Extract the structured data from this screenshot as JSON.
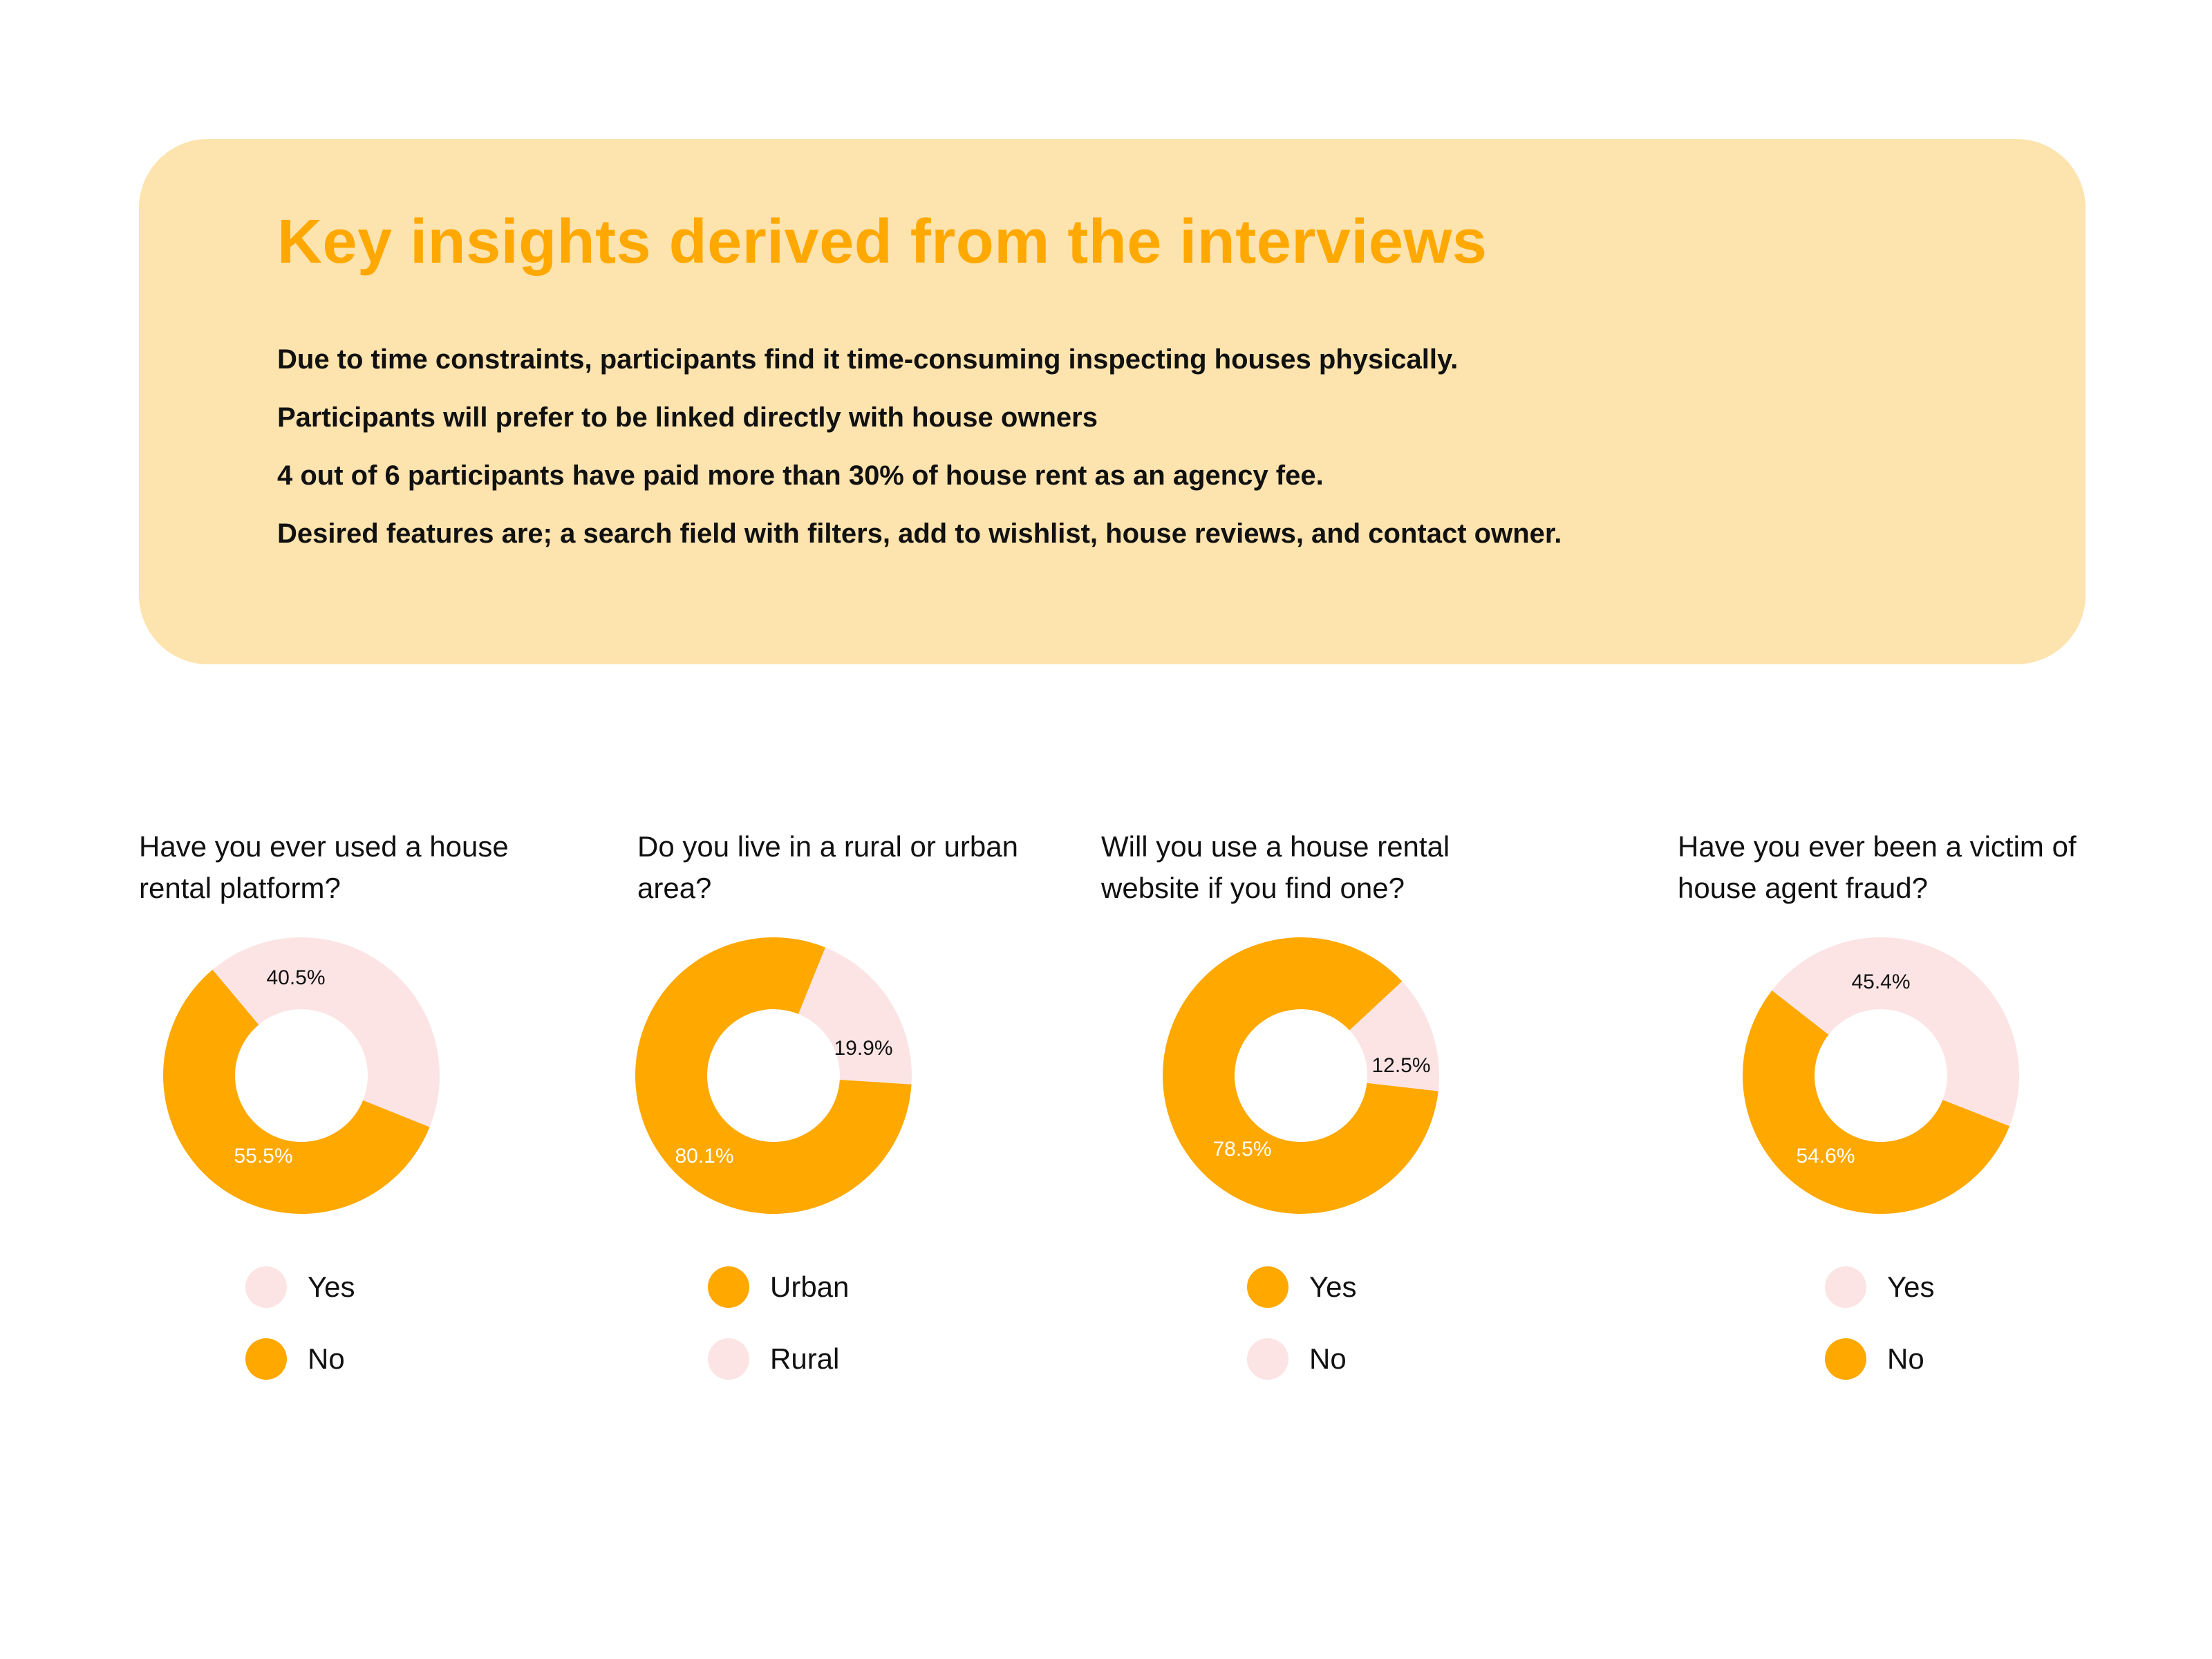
{
  "insights": {
    "title": "Key insights derived from the interviews",
    "lines": [
      "Due to time constraints, participants find it time-consuming inspecting houses physically.",
      "Participants will prefer to be linked directly with house owners",
      "4 out of 6 participants have paid more than 30% of house rent as an agency fee.",
      "Desired features are; a search field with filters, add to wishlist, house reviews, and contact owner."
    ]
  },
  "colors": {
    "orange": "#ffa800",
    "pink": "#fce4e4",
    "panel": "#fde3ad",
    "title": "#ffa800"
  },
  "chart_data": [
    {
      "type": "pie",
      "title": "Have you ever used a house rental platform?",
      "slices": [
        {
          "label": "Yes",
          "value": 40.5,
          "display": "40.5%",
          "color": "#fce4e4"
        },
        {
          "label": "No",
          "value": 55.5,
          "display": "55.5%",
          "color": "#ffa800"
        }
      ],
      "legend": [
        {
          "label": "Yes",
          "color": "#fce4e4"
        },
        {
          "label": "No",
          "color": "#ffa800"
        }
      ]
    },
    {
      "type": "pie",
      "title": "Do you live in a rural or urban area?",
      "slices": [
        {
          "label": "Rural",
          "value": 19.9,
          "display": "19.9%",
          "color": "#fce4e4"
        },
        {
          "label": "Urban",
          "value": 80.1,
          "display": "80.1%",
          "color": "#ffa800"
        }
      ],
      "legend": [
        {
          "label": "Urban",
          "color": "#ffa800"
        },
        {
          "label": "Rural",
          "color": "#fce4e4"
        }
      ]
    },
    {
      "type": "pie",
      "title": "Will you use a house rental website if you find one?",
      "slices": [
        {
          "label": "No",
          "value": 12.5,
          "display": "12.5%",
          "color": "#fce4e4"
        },
        {
          "label": "Yes",
          "value": 78.5,
          "display": "78.5%",
          "color": "#ffa800"
        }
      ],
      "legend": [
        {
          "label": "Yes",
          "color": "#ffa800"
        },
        {
          "label": "No",
          "color": "#fce4e4"
        }
      ]
    },
    {
      "type": "pie",
      "title": "Have you ever been a victim of house agent fraud?",
      "slices": [
        {
          "label": "Yes",
          "value": 45.4,
          "display": "45.4%",
          "color": "#fce4e4"
        },
        {
          "label": "No",
          "value": 54.6,
          "display": "54.6%",
          "color": "#ffa800"
        }
      ],
      "legend": [
        {
          "label": "Yes",
          "color": "#fce4e4"
        },
        {
          "label": "No",
          "color": "#ffa800"
        }
      ]
    }
  ]
}
